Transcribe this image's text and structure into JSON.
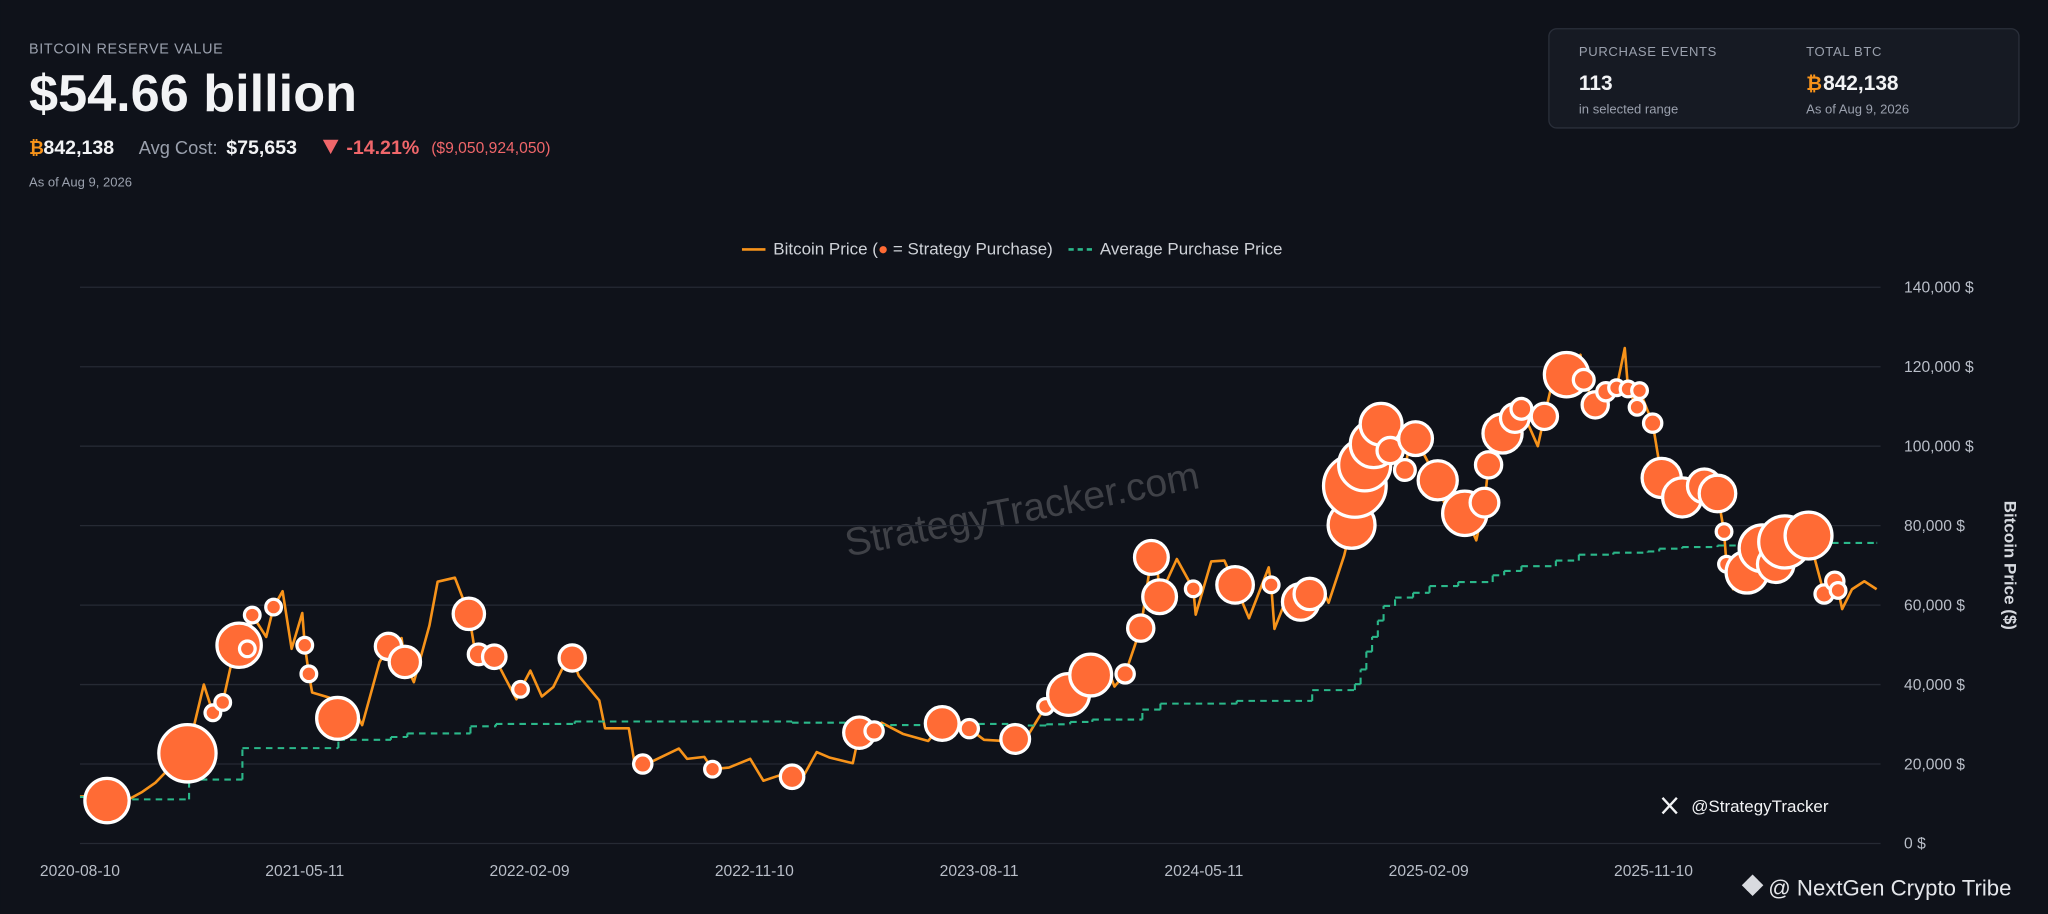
{
  "header": {
    "label": "BITCOIN RESERVE VALUE",
    "value": "$54.66 billion",
    "btc_symbol": "₿",
    "btc_amount": "842,138",
    "avg_cost_label": "Avg Cost:",
    "avg_cost": "$75,653",
    "change_pct": "-14.21%",
    "change_usd": "($9,050,924,050)",
    "as_of": "As of Aug 9, 2026"
  },
  "stats": {
    "events_label": "PURCHASE EVENTS",
    "events_value": "113",
    "events_note": "in selected range",
    "total_label": "TOTAL BTC",
    "total_value": "842,138",
    "total_note": "As of Aug 9, 2026"
  },
  "watermark": "StrategyTracker.com",
  "handle": "@StrategyTracker",
  "credit": "@ NextGen Crypto Tribe",
  "chart_data": {
    "type": "line",
    "y_label": "Bitcoin Price ($)",
    "xlim": [
      "2020-08-10",
      "2026-08-09"
    ],
    "xticks": [
      "2020-08-10",
      "2021-05-11",
      "2022-02-09",
      "2022-11-10",
      "2023-08-11",
      "2024-05-11",
      "2025-02-09",
      "2025-11-10"
    ],
    "ylim": [
      0,
      140000
    ],
    "yticks": [
      {
        "value": 0,
        "label": "0 $"
      },
      {
        "value": 20000,
        "label": "20,000 $"
      },
      {
        "value": 40000,
        "label": "40,000 $"
      },
      {
        "value": 60000,
        "label": "60,000 $"
      },
      {
        "value": 80000,
        "label": "80,000 $"
      },
      {
        "value": 100000,
        "label": "100,000 $"
      },
      {
        "value": 120000,
        "label": "120,000 $"
      },
      {
        "value": 140000,
        "label": "140,000 $"
      }
    ],
    "grid": true,
    "legend": "top",
    "series": [
      {
        "name": "Bitcoin Price (● = Strategy Purchase)",
        "color": "#f7931a",
        "x": [
          "2020-08-10",
          "2020-08-20",
          "2020-09-05",
          "2020-09-12",
          "2020-10-10",
          "2020-10-25",
          "2020-11-10",
          "2020-11-25",
          "2020-12-10",
          "2020-12-19",
          "2021-01-08",
          "2021-01-19",
          "2021-01-31",
          "2021-02-10",
          "2021-02-20",
          "2021-03-02",
          "2021-03-08",
          "2021-03-25",
          "2021-04-03",
          "2021-04-14",
          "2021-04-25",
          "2021-05-08",
          "2021-05-11",
          "2021-05-16",
          "2021-05-20",
          "2021-06-10",
          "2021-06-20",
          "2021-07-10",
          "2021-07-20",
          "2021-08-10",
          "2021-08-21",
          "2021-09-06",
          "2021-09-10",
          "2021-09-21",
          "2021-10-10",
          "2021-10-20",
          "2021-11-10",
          "2021-11-27",
          "2021-12-04",
          "2021-12-09",
          "2021-12-28",
          "2022-01-10",
          "2022-01-24",
          "2022-01-29",
          "2022-02-10",
          "2022-02-24",
          "2022-03-10",
          "2022-03-29",
          "2022-04-02",
          "2022-04-10",
          "2022-05-05",
          "2022-05-12",
          "2022-06-10",
          "2022-06-18",
          "2022-06-27",
          "2022-07-10",
          "2022-08-10",
          "2022-08-20",
          "2022-09-10",
          "2022-09-20",
          "2022-10-10",
          "2022-11-05",
          "2022-11-21",
          "2022-12-10",
          "2022-12-26",
          "2023-01-10",
          "2023-01-25",
          "2023-02-10",
          "2023-03-10",
          "2023-03-18",
          "2023-04-05",
          "2023-04-14",
          "2023-05-10",
          "2023-06-10",
          "2023-06-27",
          "2023-07-13",
          "2023-07-30",
          "2023-08-17",
          "2023-09-10",
          "2023-09-24",
          "2023-10-10",
          "2023-10-31",
          "2023-11-10",
          "2023-11-28",
          "2023-12-08",
          "2023-12-25",
          "2024-01-10",
          "2024-01-23",
          "2024-02-05",
          "2024-02-24",
          "2024-03-08",
          "2024-03-14",
          "2024-03-18",
          "2024-04-08",
          "2024-04-28",
          "2024-05-01",
          "2024-05-20",
          "2024-06-05",
          "2024-06-18",
          "2024-07-05",
          "2024-07-29",
          "2024-08-01",
          "2024-08-05",
          "2024-08-24",
          "2024-09-06",
          "2024-09-17",
          "2024-09-28",
          "2024-10-10",
          "2024-10-29",
          "2024-11-07",
          "2024-11-11",
          "2024-11-23",
          "2024-12-04",
          "2024-12-13",
          "2024-12-17",
          "2024-12-24",
          "2025-01-11",
          "2025-01-21",
          "2025-01-24",
          "2025-02-20",
          "2025-03-10",
          "2025-03-25",
          "2025-04-08",
          "2025-04-18",
          "2025-04-23",
          "2025-05-10",
          "2025-05-22",
          "2025-05-25",
          "2025-06-02",
          "2025-06-22",
          "2025-06-30",
          "2025-07-14",
          "2025-07-27",
          "2025-08-13",
          "2025-08-17",
          "2025-08-31",
          "2025-09-13",
          "2025-09-26",
          "2025-10-06",
          "2025-10-10",
          "2025-10-21",
          "2025-10-24",
          "2025-11-09",
          "2025-11-20",
          "2025-12-15",
          "2026-01-11",
          "2026-01-27",
          "2026-02-04",
          "2026-02-07",
          "2026-02-15",
          "2026-03-04",
          "2026-03-23",
          "2026-04-08",
          "2026-04-19",
          "2026-05-18",
          "2026-06-06",
          "2026-06-19",
          "2026-06-23",
          "2026-06-28",
          "2026-07-10",
          "2026-07-25",
          "2026-08-09"
        ],
        "values": [
          11800,
          11900,
          10200,
          10800,
          11300,
          13000,
          15300,
          18500,
          18300,
          22700,
          40000,
          32900,
          35500,
          44800,
          49900,
          49000,
          57500,
          52000,
          59500,
          63500,
          49000,
          58000,
          49900,
          42700,
          38000,
          36700,
          31500,
          33800,
          29800,
          45600,
          49600,
          51700,
          45700,
          40600,
          54900,
          65900,
          66900,
          57800,
          49000,
          47600,
          47000,
          41800,
          36300,
          38800,
          43500,
          37000,
          39400,
          47400,
          46700,
          42200,
          36000,
          29000,
          29000,
          19000,
          20000,
          20800,
          23900,
          21300,
          21800,
          18700,
          19100,
          21300,
          15800,
          17100,
          16800,
          17400,
          23000,
          21600,
          20200,
          27900,
          28300,
          30400,
          27600,
          25800,
          30200,
          31400,
          28900,
          26100,
          25800,
          26300,
          27400,
          34500,
          37300,
          37500,
          44000,
          42400,
          46600,
          39500,
          42700,
          54200,
          72000,
          73100,
          62100,
          71600,
          64100,
          57600,
          71000,
          71200,
          65100,
          56700,
          69500,
          65100,
          54000,
          64000,
          60800,
          62800,
          66000,
          60600,
          72500,
          80200,
          90000,
          95300,
          100500,
          105500,
          106100,
          98900,
          94000,
          105900,
          101900,
          91400,
          78500,
          83100,
          76300,
          85800,
          95300,
          103200,
          111000,
          107100,
          109400,
          100000,
          107500,
          119900,
          118000,
          123000,
          116700,
          110400,
          113700,
          114700,
          124700,
          114400,
          109800,
          114000,
          105800,
          92000,
          87100,
          90000,
          88100,
          78500,
          70300,
          64000,
          68300,
          74300,
          70300,
          75900,
          77500,
          62800,
          66000,
          63700,
          59000,
          64000,
          66000,
          64000
        ]
      },
      {
        "name": "Average Purchase Price",
        "color": "#2bb88a",
        "dashed": true,
        "step": true,
        "x": [
          "2020-08-10",
          "2020-09-14",
          "2020-12-21",
          "2021-02-24",
          "2021-06-21",
          "2021-08-24",
          "2021-09-13",
          "2021-11-29",
          "2021-12-30",
          "2022-04-05",
          "2022-12-26",
          "2023-03-27",
          "2023-06-28",
          "2023-09-25",
          "2023-11-01",
          "2023-11-30",
          "2023-12-27",
          "2024-02-26",
          "2024-03-19",
          "2024-06-20",
          "2024-09-20",
          "2024-11-11",
          "2024-11-18",
          "2024-11-25",
          "2024-12-02",
          "2024-12-09",
          "2024-12-16",
          "2024-12-30",
          "2025-01-21",
          "2025-02-10",
          "2025-03-17",
          "2025-04-28",
          "2025-05-12",
          "2025-06-02",
          "2025-07-14",
          "2025-08-11",
          "2025-09-22",
          "2025-11-03",
          "2025-11-17",
          "2025-12-15",
          "2026-01-27",
          "2026-03-04",
          "2026-05-18",
          "2026-08-09"
        ],
        "values": [
          11700,
          11100,
          16100,
          24000,
          26100,
          26800,
          27700,
          29500,
          30100,
          30700,
          30400,
          29800,
          30100,
          29700,
          30000,
          30600,
          31200,
          33700,
          35200,
          35900,
          38600,
          40100,
          43800,
          48300,
          52000,
          56100,
          59800,
          61900,
          63100,
          64800,
          65800,
          67500,
          68600,
          69800,
          71200,
          72700,
          73200,
          73500,
          74200,
          74600,
          75000,
          75400,
          75653,
          75653
        ]
      }
    ],
    "purchases": {
      "color": "#ff6b35",
      "x": [
        "2020-09-12",
        "2020-12-19",
        "2021-01-19",
        "2021-01-31",
        "2021-02-20",
        "2021-03-02",
        "2021-03-08",
        "2021-04-03",
        "2021-05-11",
        "2021-05-16",
        "2021-06-20",
        "2021-08-21",
        "2021-09-10",
        "2021-11-27",
        "2021-12-09",
        "2021-12-28",
        "2022-01-29",
        "2022-04-02",
        "2022-06-27",
        "2022-09-20",
        "2022-12-26",
        "2023-03-18",
        "2023-04-05",
        "2023-06-27",
        "2023-07-30",
        "2023-09-24",
        "2023-10-31",
        "2023-11-28",
        "2023-12-25",
        "2024-02-05",
        "2024-02-24",
        "2024-03-08",
        "2024-03-18",
        "2024-04-28",
        "2024-06-18",
        "2024-08-01",
        "2024-09-06",
        "2024-09-17",
        "2024-11-07",
        "2024-11-11",
        "2024-11-23",
        "2024-12-04",
        "2024-12-13",
        "2024-12-24",
        "2025-01-11",
        "2025-01-24",
        "2025-02-20",
        "2025-03-25",
        "2025-04-18",
        "2025-04-23",
        "2025-05-10",
        "2025-05-25",
        "2025-06-02",
        "2025-06-30",
        "2025-07-27",
        "2025-08-17",
        "2025-08-31",
        "2025-09-13",
        "2025-09-26",
        "2025-10-10",
        "2025-10-21",
        "2025-10-24",
        "2025-11-09",
        "2025-11-20",
        "2025-12-15",
        "2026-01-11",
        "2026-01-27",
        "2026-02-04",
        "2026-02-07",
        "2026-03-04",
        "2026-03-23",
        "2026-04-08",
        "2026-04-19",
        "2026-05-18",
        "2026-06-06",
        "2026-06-19",
        "2026-06-23"
      ],
      "values": [
        10800,
        22700,
        32900,
        35500,
        49900,
        49000,
        57500,
        59500,
        49900,
        42700,
        31500,
        49600,
        45700,
        57800,
        47600,
        47000,
        38800,
        46700,
        20000,
        18700,
        16800,
        27900,
        28300,
        30200,
        28900,
        26300,
        34500,
        37500,
        42400,
        42700,
        54200,
        72000,
        62100,
        64100,
        65100,
        65100,
        60800,
        62800,
        80200,
        90000,
        95300,
        100500,
        105500,
        98900,
        94000,
        101900,
        91400,
        83100,
        85800,
        95300,
        103200,
        107100,
        109400,
        107500,
        118000,
        116700,
        110400,
        113700,
        114700,
        114400,
        109800,
        114000,
        105800,
        92000,
        87100,
        90000,
        88100,
        78500,
        70300,
        68300,
        74300,
        70300,
        75900,
        77500,
        62800,
        66000,
        63700
      ],
      "sizes": [
        10000,
        16700,
        1250,
        1250,
        10000,
        1250,
        1250,
        1250,
        1250,
        1250,
        8900,
        3500,
        5000,
        5000,
        2200,
        2800,
        1250,
        3500,
        1700,
        1250,
        2800,
        5000,
        1700,
        5800,
        1700,
        4200,
        1250,
        8900,
        8900,
        1700,
        3500,
        5800,
        5800,
        1250,
        6800,
        1250,
        6800,
        5000,
        11200,
        20000,
        13800,
        11200,
        8900,
        3500,
        2200,
        5800,
        7800,
        10000,
        4200,
        3500,
        7800,
        4200,
        2200,
        3500,
        10000,
        2200,
        3500,
        1700,
        1250,
        1250,
        1250,
        1250,
        1700,
        7800,
        7800,
        5800,
        6800,
        1250,
        1250,
        8900,
        11200,
        6800,
        13800,
        11200,
        1700,
        1700,
        1250
      ]
    }
  }
}
